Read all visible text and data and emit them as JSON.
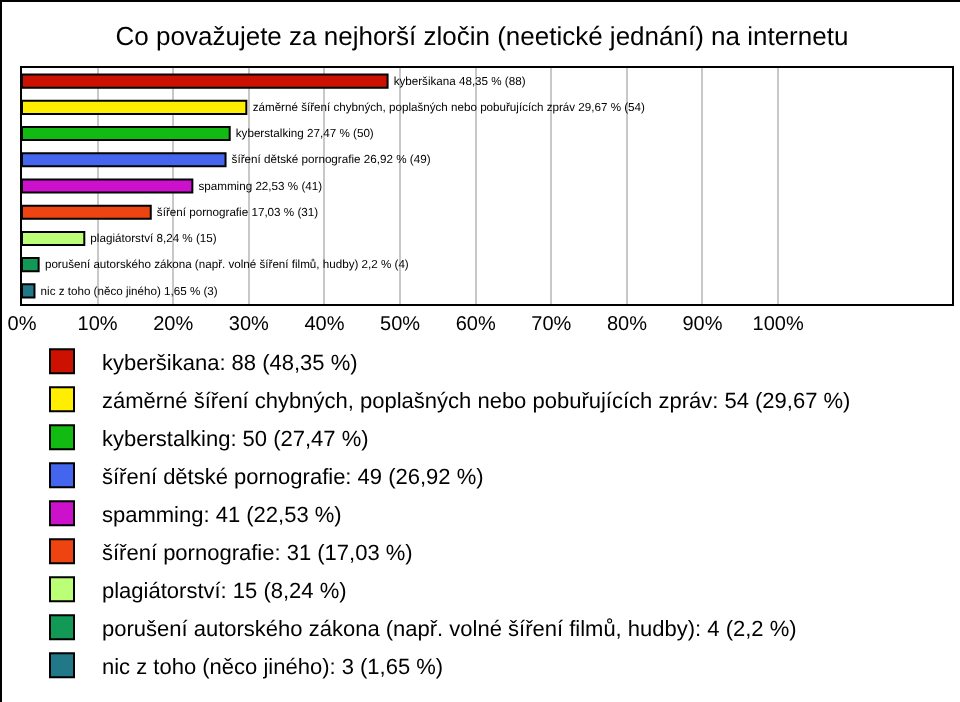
{
  "chart_data": {
    "type": "bar",
    "orientation": "horizontal",
    "title": "Co považujete za nejhorší zločin (neetické jednání) na internetu",
    "categories": [
      null,
      null,
      null,
      null,
      null,
      null,
      null,
      null,
      null
    ],
    "series": [
      {
        "name": "kyberšikana: 88 (48,35 %)",
        "color": "#cc1100",
        "values": [
          48.35,
          null,
          null,
          null,
          null,
          null,
          null,
          null,
          null
        ],
        "value_labels": [
          "kyberšikana 48,35 % (88)",
          null,
          null,
          null,
          null,
          null,
          null,
          null,
          null
        ]
      },
      {
        "name": "záměrné šíření chybných, poplašných nebo pobuřujících zpráv: 54 (29,67 %)",
        "color": "#ffee00",
        "values": [
          null,
          29.67,
          null,
          null,
          null,
          null,
          null,
          null,
          null
        ],
        "value_labels": [
          null,
          "záměrné šíření chybných, poplašných nebo pobuřujících zpráv 29,67 % (54)",
          null,
          null,
          null,
          null,
          null,
          null,
          null
        ]
      },
      {
        "name": "kyberstalking: 50 (27,47 %)",
        "color": "#11bb11",
        "values": [
          null,
          null,
          27.47,
          null,
          null,
          null,
          null,
          null,
          null
        ],
        "value_labels": [
          null,
          null,
          "kyberstalking 27,47 % (50)",
          null,
          null,
          null,
          null,
          null,
          null
        ]
      },
      {
        "name": "šíření dětské pornografie: 49 (26,92 %)",
        "color": "#4466ee",
        "values": [
          null,
          null,
          null,
          26.92,
          null,
          null,
          null,
          null,
          null
        ],
        "value_labels": [
          null,
          null,
          null,
          "šíření dětské pornografie 26,92 % (49)",
          null,
          null,
          null,
          null,
          null
        ]
      },
      {
        "name": "spamming: 41 (22,53 %)",
        "color": "#cc11cc",
        "values": [
          null,
          null,
          null,
          null,
          22.53,
          null,
          null,
          null,
          null
        ],
        "value_labels": [
          null,
          null,
          null,
          null,
          "spamming 22,53 % (41)",
          null,
          null,
          null,
          null
        ]
      },
      {
        "name": "šíření pornografie: 31 (17,03 %)",
        "color": "#ee4411",
        "values": [
          null,
          null,
          null,
          null,
          null,
          17.03,
          null,
          null,
          null
        ],
        "value_labels": [
          null,
          null,
          null,
          null,
          null,
          "šíření pornografie 17,03 % (31)",
          null,
          null,
          null
        ]
      },
      {
        "name": "plagiátorství: 15 (8,24 %)",
        "color": "#bbff77",
        "values": [
          null,
          null,
          null,
          null,
          null,
          null,
          8.24,
          null,
          null
        ],
        "value_labels": [
          null,
          null,
          null,
          null,
          null,
          null,
          "plagiátorství 8,24 % (15)",
          null,
          null
        ]
      },
      {
        "name": "porušení autorského zákona (např. volné šíření filmů, hudby): 4 (2,2 %)",
        "color": "#119955",
        "values": [
          null,
          null,
          null,
          null,
          null,
          null,
          null,
          2.2,
          null
        ],
        "value_labels": [
          null,
          null,
          null,
          null,
          null,
          null,
          null,
          "porušení autorského zákona (např. volné šíření filmů, hudby) 2,2 % (4)",
          null
        ]
      },
      {
        "name": "nic z toho (něco jiného): 3 (1,65 %)",
        "color": "#227788",
        "values": [
          null,
          null,
          null,
          null,
          null,
          null,
          null,
          null,
          1.65
        ],
        "value_labels": [
          null,
          null,
          null,
          null,
          null,
          null,
          null,
          null,
          "nic z toho (něco jiného) 1,65 % (3)"
        ]
      }
    ],
    "xlim": [
      0,
      123
    ],
    "xticks": [
      {
        "value": 0,
        "label": "0%"
      },
      {
        "value": 10,
        "label": "10%"
      },
      {
        "value": 20,
        "label": "20%"
      },
      {
        "value": 30,
        "label": "30%"
      },
      {
        "value": 40,
        "label": "40%"
      },
      {
        "value": 50,
        "label": "50%"
      },
      {
        "value": 60,
        "label": "60%"
      },
      {
        "value": 70,
        "label": "70%"
      },
      {
        "value": 80,
        "label": "80%"
      },
      {
        "value": 90,
        "label": "90%"
      },
      {
        "value": 100,
        "label": "100%"
      }
    ],
    "grid": "x",
    "legend": "bottom",
    "tick_labels": "x"
  }
}
